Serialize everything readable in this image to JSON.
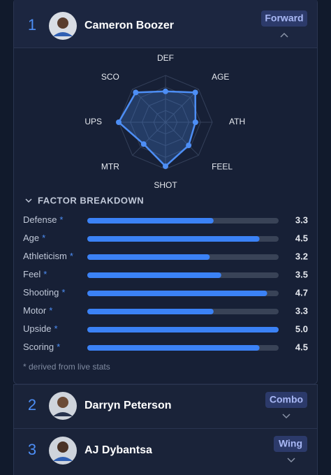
{
  "players": [
    {
      "rank": "1",
      "name": "Cameron Boozer",
      "position": "Forward"
    },
    {
      "rank": "2",
      "name": "Darryn Peterson",
      "position": "Combo"
    },
    {
      "rank": "3",
      "name": "AJ Dybantsa",
      "position": "Wing"
    }
  ],
  "radar": {
    "axes": [
      "DEF",
      "AGE",
      "ATH",
      "FEEL",
      "SHOT",
      "MTR",
      "UPS",
      "SCO"
    ],
    "rlim": [
      0,
      5
    ],
    "rticks": [
      1.25,
      2.5,
      3.75,
      5
    ]
  },
  "breakdown": {
    "title": "FACTOR BREAKDOWN",
    "labels": [
      "Defense",
      "Age",
      "Athleticism",
      "Feel",
      "Shooting",
      "Motor",
      "Upside",
      "Scoring"
    ],
    "live_marker": "*",
    "values": [
      3.3,
      4.5,
      3.2,
      3.5,
      4.7,
      3.3,
      5.0,
      4.5
    ],
    "value_labels": [
      "3.3",
      "4.5",
      "3.2",
      "3.5",
      "4.7",
      "3.3",
      "5.0",
      "4.5"
    ],
    "xlim": [
      0,
      5
    ]
  },
  "footnote": "* derived from live stats"
}
